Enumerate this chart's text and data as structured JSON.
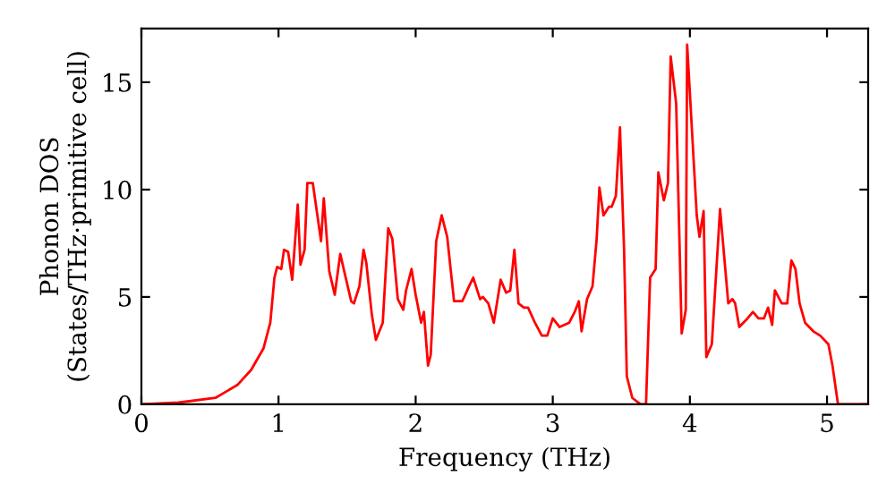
{
  "chart_data": {
    "type": "line",
    "xlabel": "Frequency (THz)",
    "ylabel": "Phonon DOS\n(States/THz·primitive cell)",
    "xlim": [
      0,
      5.3
    ],
    "ylim": [
      0,
      17.5
    ],
    "xticks": [
      0,
      1,
      2,
      3,
      4,
      5
    ],
    "yticks": [
      0,
      5,
      10,
      15
    ],
    "grid": false,
    "legend": false,
    "marker": "none",
    "line_style": "solid",
    "series": [
      {
        "color": "#ff0000",
        "x": [
          0,
          0.27,
          0.54,
          0.7,
          0.8,
          0.89,
          0.94,
          0.97,
          0.99,
          1.02,
          1.04,
          1.07,
          1.1,
          1.14,
          1.16,
          1.19,
          1.21,
          1.25,
          1.31,
          1.33,
          1.37,
          1.41,
          1.45,
          1.49,
          1.53,
          1.55,
          1.59,
          1.62,
          1.64,
          1.68,
          1.71,
          1.76,
          1.8,
          1.83,
          1.87,
          1.91,
          1.93,
          1.97,
          2.0,
          2.04,
          2.06,
          2.09,
          2.11,
          2.15,
          2.19,
          2.23,
          2.28,
          2.34,
          2.39,
          2.42,
          2.47,
          2.49,
          2.53,
          2.57,
          2.62,
          2.66,
          2.69,
          2.72,
          2.75,
          2.79,
          2.82,
          2.87,
          2.92,
          2.96,
          3.0,
          3.05,
          3.12,
          3.16,
          3.19,
          3.21,
          3.25,
          3.29,
          3.32,
          3.34,
          3.37,
          3.41,
          3.43,
          3.46,
          3.49,
          3.52,
          3.54,
          3.58,
          3.64,
          3.68,
          3.71,
          3.75,
          3.77,
          3.81,
          3.84,
          3.86,
          3.9,
          3.94,
          3.97,
          3.98,
          4.05,
          4.07,
          4.1,
          4.12,
          4.16,
          4.22,
          4.28,
          4.31,
          4.33,
          4.36,
          4.42,
          4.46,
          4.5,
          4.54,
          4.57,
          4.6,
          4.62,
          4.67,
          4.71,
          4.74,
          4.77,
          4.8,
          4.84,
          4.9,
          4.95,
          5.01,
          5.04,
          5.08,
          5.3
        ],
        "values": [
          0,
          0.08,
          0.3,
          0.9,
          1.6,
          2.6,
          3.8,
          5.9,
          6.4,
          6.3,
          7.2,
          7.1,
          5.8,
          9.3,
          6.5,
          7.2,
          10.3,
          10.3,
          7.6,
          9.6,
          6.2,
          5.1,
          7.0,
          5.9,
          4.8,
          4.7,
          5.5,
          7.2,
          6.6,
          4.2,
          3.0,
          3.8,
          8.2,
          7.7,
          4.9,
          4.4,
          5.3,
          6.3,
          5.1,
          3.8,
          4.3,
          1.8,
          2.3,
          7.6,
          8.8,
          7.8,
          4.8,
          4.8,
          5.5,
          5.9,
          4.9,
          5.0,
          4.7,
          3.8,
          5.8,
          5.2,
          5.3,
          7.2,
          4.7,
          4.5,
          4.5,
          3.8,
          3.2,
          3.2,
          4.0,
          3.6,
          3.8,
          4.3,
          4.8,
          3.4,
          4.9,
          5.5,
          7.7,
          10.1,
          8.8,
          9.2,
          9.2,
          9.7,
          12.9,
          7.2,
          1.3,
          0.3,
          0,
          0,
          5.9,
          6.3,
          10.8,
          9.5,
          10.3,
          16.2,
          14.0,
          3.3,
          4.4,
          16.75,
          8.8,
          7.8,
          9.0,
          2.2,
          2.8,
          9.1,
          4.7,
          4.9,
          4.7,
          3.6,
          4.0,
          4.3,
          4.0,
          4.0,
          4.5,
          3.7,
          5.3,
          4.7,
          4.7,
          6.7,
          6.3,
          4.7,
          3.8,
          3.4,
          3.2,
          2.8,
          1.8,
          0,
          0
        ]
      }
    ]
  }
}
